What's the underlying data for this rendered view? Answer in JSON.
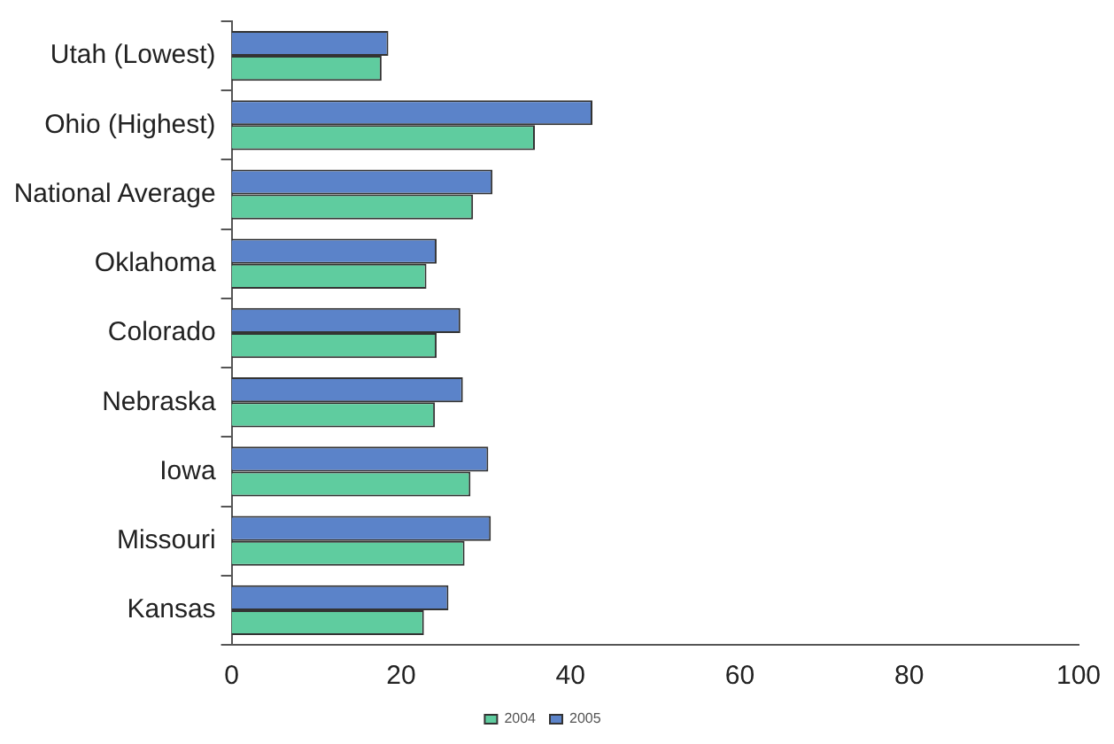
{
  "chart_data": {
    "type": "bar",
    "orientation": "horizontal",
    "categories": [
      "Utah (Lowest)",
      "Ohio (Highest)",
      "National Average",
      "Oklahoma",
      "Colorado",
      "Nebraska",
      "Iowa",
      "Missouri",
      "Kansas"
    ],
    "series": [
      {
        "name": "2005",
        "color": "#5b83c9",
        "values": [
          18.5,
          42.6,
          30.8,
          24.2,
          27.0,
          27.3,
          30.3,
          30.6,
          25.6
        ]
      },
      {
        "name": "2004",
        "color": "#5fcc9f",
        "values": [
          17.7,
          35.8,
          28.5,
          23.0,
          24.2,
          24.0,
          28.2,
          27.5,
          22.7
        ]
      }
    ],
    "xlim": [
      0,
      100
    ],
    "xticks": [
      0,
      20,
      40,
      60,
      80,
      100
    ],
    "grid": false,
    "legend": "bottom"
  }
}
